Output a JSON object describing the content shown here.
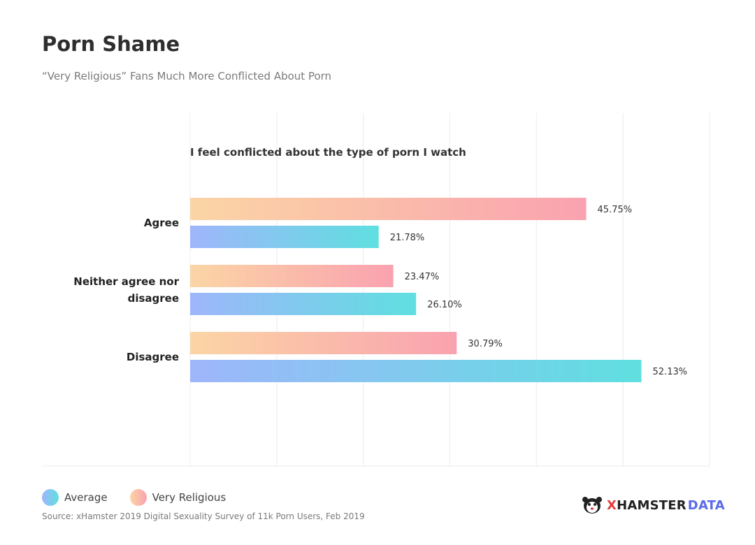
{
  "header": {
    "title": "Porn Shame",
    "subtitle": "“Very Religious” Fans Much More Conflicted About Porn"
  },
  "chart_data": {
    "type": "bar",
    "orientation": "horizontal",
    "title": "I feel conflicted about the type of porn I watch",
    "categories": [
      "Agree",
      "Neither agree nor disagree",
      "Disagree"
    ],
    "category_lines": [
      [
        "Agree"
      ],
      [
        "Neither agree nor",
        "disagree"
      ],
      [
        "Disagree"
      ]
    ],
    "series": [
      {
        "name": "Very Religious",
        "values": [
          45.75,
          23.47,
          30.79
        ],
        "labels": [
          "45.75%",
          "23.47%",
          "30.79%"
        ]
      },
      {
        "name": "Average",
        "values": [
          21.78,
          26.1,
          52.13
        ],
        "labels": [
          "21.78%",
          "26.10%",
          "52.13%"
        ]
      }
    ],
    "xlim": [
      0,
      60
    ],
    "grid": true,
    "legend_position": "bottom-left",
    "colors": {
      "very_religious": [
        "#fbd5a5",
        "#faa2b0"
      ],
      "average": [
        "#9fb6fb",
        "#5fdfe0"
      ]
    }
  },
  "legend": {
    "items": [
      {
        "label": "Average"
      },
      {
        "label": "Very Religious"
      }
    ]
  },
  "footer": {
    "source": "Source: xHamster 2019 Digital Sexuality Survey of 11k Porn Users, Feb 2019",
    "brand_x": "X",
    "brand_hamster": "HAMSTER",
    "brand_data": "DATA",
    "brand_icon": "hamster-logo-icon"
  }
}
